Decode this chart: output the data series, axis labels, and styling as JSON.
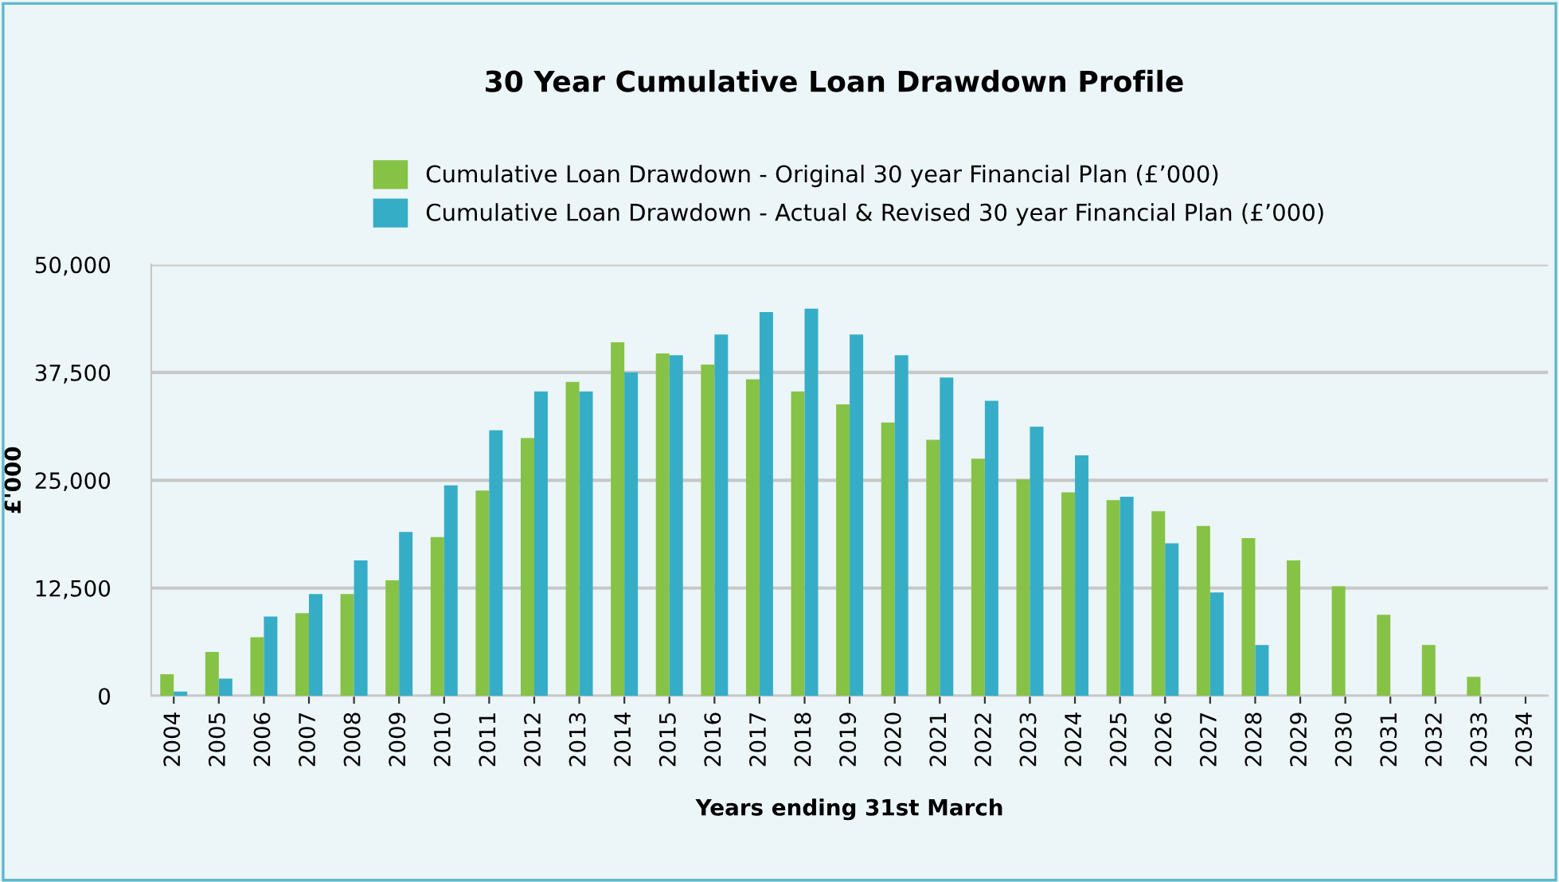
{
  "chart_data": {
    "type": "bar",
    "title": "30 Year Cumulative Loan Drawdown Profile",
    "xlabel": "Years ending 31st March",
    "ylabel": "£'000",
    "categories": [
      "2004",
      "2005",
      "2006",
      "2007",
      "2008",
      "2009",
      "2010",
      "2011",
      "2012",
      "2013",
      "2014",
      "2015",
      "2016",
      "2017",
      "2018",
      "2019",
      "2020",
      "2021",
      "2022",
      "2023",
      "2024",
      "2025",
      "2026",
      "2027",
      "2028",
      "2029",
      "2030",
      "2031",
      "2032",
      "2033",
      "2034"
    ],
    "series": [
      {
        "name": "Cumulative Loan Drawdown - Original 30 year Financial Plan (£’000)",
        "color": "#86c246",
        "values": [
          2500,
          5100,
          6800,
          9600,
          11800,
          13400,
          18400,
          23800,
          29900,
          36400,
          41000,
          39700,
          38400,
          36700,
          35300,
          33800,
          31700,
          29700,
          27500,
          25100,
          23600,
          22700,
          21400,
          19700,
          18300,
          15700,
          12700,
          9400,
          5900,
          2200,
          null
        ]
      },
      {
        "name": "Cumulative Loan Drawdown - Actual & Revised 30 year Financial Plan (£’000)",
        "color": "#36adc7",
        "values": [
          500,
          2000,
          9200,
          11800,
          15700,
          19000,
          24400,
          30800,
          35300,
          35300,
          37500,
          39500,
          41900,
          44500,
          44900,
          41900,
          39500,
          36900,
          34200,
          31200,
          27900,
          23100,
          17700,
          12000,
          5900,
          null,
          null,
          null,
          null,
          null,
          null
        ]
      }
    ],
    "ylim": [
      0,
      50000
    ],
    "yticks": [
      {
        "value": 0,
        "label": "0"
      },
      {
        "value": 12500,
        "label": "12,500"
      },
      {
        "value": 25000,
        "label": "25,000"
      },
      {
        "value": 37500,
        "label": "37,500"
      },
      {
        "value": 50000,
        "label": "50,000"
      }
    ],
    "grid": "y",
    "legend": "top"
  }
}
